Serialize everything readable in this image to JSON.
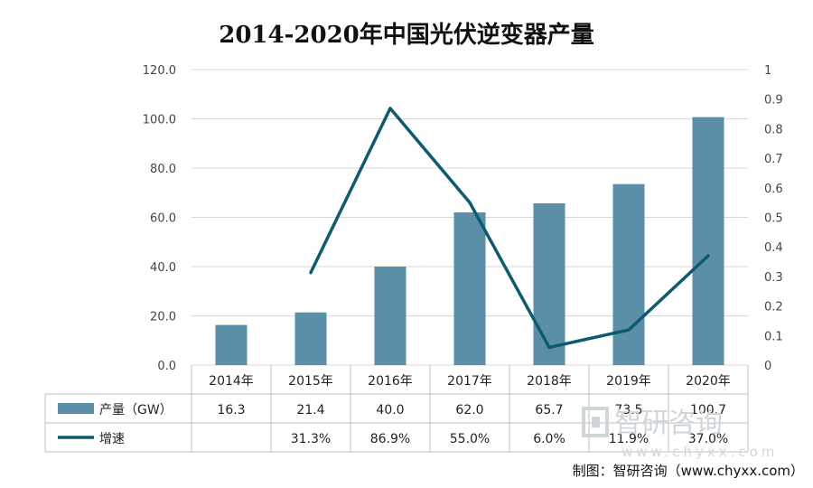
{
  "chart_data": {
    "type": "bar",
    "title": "2014-2020年中国光伏逆变器产量",
    "categories": [
      "2014年",
      "2015年",
      "2016年",
      "2017年",
      "2018年",
      "2019年",
      "2020年"
    ],
    "series": [
      {
        "name": "产量（GW）",
        "type": "bar",
        "axis": "left",
        "values": [
          16.3,
          21.4,
          40.0,
          62.0,
          65.7,
          73.5,
          100.7
        ],
        "labels": [
          "16.3",
          "21.4",
          "40.0",
          "62.0",
          "65.7",
          "73.5",
          "100.7"
        ],
        "color": "#5b8fa8"
      },
      {
        "name": "增速",
        "type": "line",
        "axis": "right",
        "values": [
          null,
          0.313,
          0.869,
          0.55,
          0.06,
          0.119,
          0.37
        ],
        "labels": [
          "",
          "31.3%",
          "86.9%",
          "55.0%",
          "6.0%",
          "11.9%",
          "37.0%"
        ],
        "color": "#0e5a6e"
      }
    ],
    "ylim_left": [
      0,
      120
    ],
    "yticks_left": [
      "0.0",
      "20.0",
      "40.0",
      "60.0",
      "80.0",
      "100.0",
      "120.0"
    ],
    "ylim_right": [
      0,
      1
    ],
    "yticks_right": [
      "0",
      "0.1",
      "0.2",
      "0.3",
      "0.4",
      "0.5",
      "0.6",
      "0.7",
      "0.8",
      "0.9",
      "1"
    ],
    "grid": true,
    "legend": "data-table-bottom"
  },
  "watermark": {
    "brand": "智研咨询",
    "url": "www.chyxx.com"
  },
  "credit": "制图：智研咨询（www.chyxx.com）"
}
